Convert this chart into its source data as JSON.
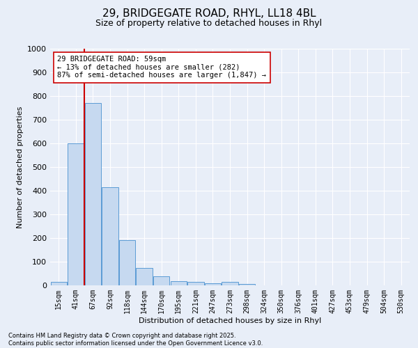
{
  "title_line1": "29, BRIDGEGATE ROAD, RHYL, LL18 4BL",
  "title_line2": "Size of property relative to detached houses in Rhyl",
  "xlabel": "Distribution of detached houses by size in Rhyl",
  "ylabel": "Number of detached properties",
  "categories": [
    "15sqm",
    "41sqm",
    "67sqm",
    "92sqm",
    "118sqm",
    "144sqm",
    "170sqm",
    "195sqm",
    "221sqm",
    "247sqm",
    "273sqm",
    "298sqm",
    "324sqm",
    "350sqm",
    "376sqm",
    "401sqm",
    "427sqm",
    "453sqm",
    "479sqm",
    "504sqm",
    "530sqm"
  ],
  "values": [
    15,
    600,
    770,
    415,
    190,
    75,
    38,
    18,
    15,
    10,
    15,
    5,
    0,
    0,
    0,
    0,
    0,
    0,
    0,
    0,
    0
  ],
  "bar_color": "#c6d9f0",
  "bar_edge_color": "#5b9bd5",
  "vline_x_index": 1,
  "vline_color": "#cc0000",
  "ylim": [
    0,
    1000
  ],
  "yticks": [
    0,
    100,
    200,
    300,
    400,
    500,
    600,
    700,
    800,
    900,
    1000
  ],
  "annotation_text": "29 BRIDGEGATE ROAD: 59sqm\n← 13% of detached houses are smaller (282)\n87% of semi-detached houses are larger (1,847) →",
  "annotation_box_facecolor": "#ffffff",
  "annotation_box_edgecolor": "#cc0000",
  "background_color": "#e8eef8",
  "grid_color": "#ffffff",
  "footnote": "Contains HM Land Registry data © Crown copyright and database right 2025.\nContains public sector information licensed under the Open Government Licence v3.0.",
  "title1_fontsize": 11,
  "title2_fontsize": 9,
  "ylabel_fontsize": 8,
  "xlabel_fontsize": 8,
  "tick_fontsize": 7,
  "annotation_fontsize": 7.5,
  "footnote_fontsize": 6
}
